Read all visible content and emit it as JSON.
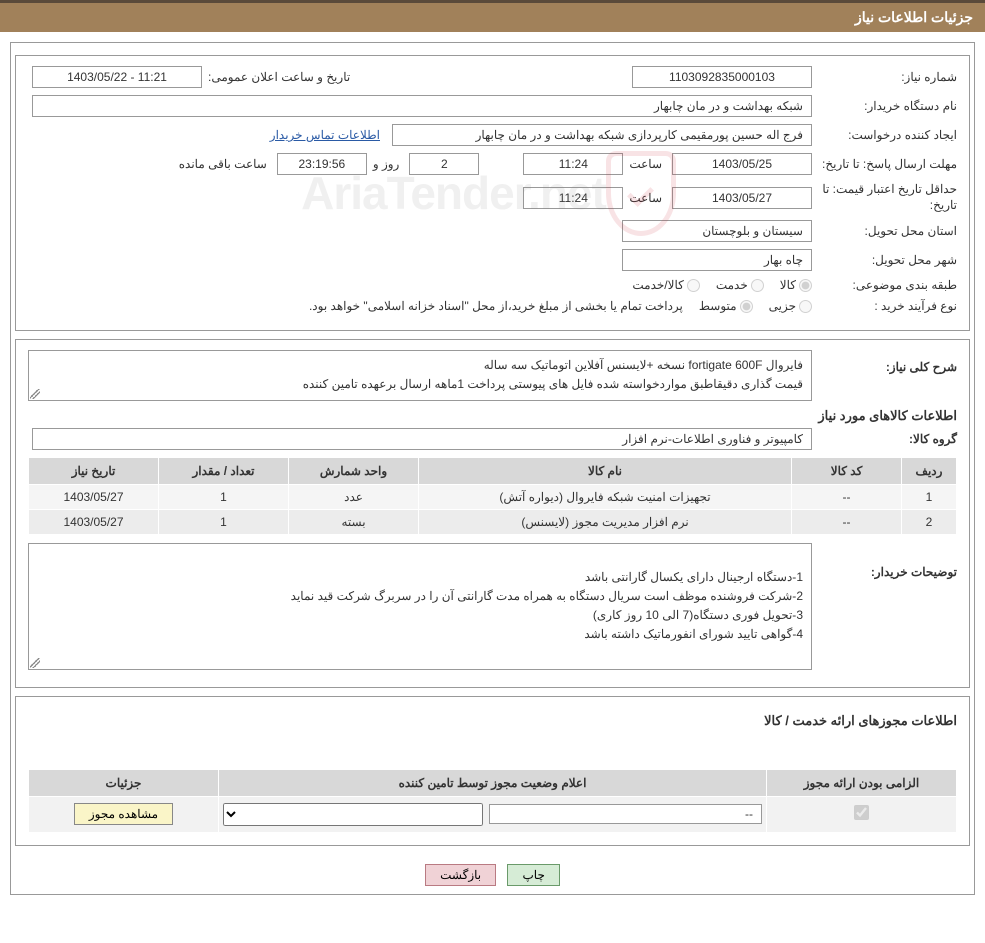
{
  "title_bar": "جزئیات اطلاعات نیاز",
  "details": {
    "need_number_label": "شماره نیاز:",
    "need_number": "1103092835000103",
    "announce_label": "تاریخ و ساعت اعلان عمومی:",
    "announce_value": "11:21 - 1403/05/22",
    "buyer_org_label": "نام دستگاه خریدار:",
    "buyer_org": "شبکه بهداشت و در مان چابهار",
    "requester_label": "ایجاد کننده درخواست:",
    "requester": "فرج اله حسین پورمقیمی کارپردازی شبکه بهداشت و در مان چابهار",
    "contact_link": "اطلاعات تماس خریدار",
    "deadline_label": "مهلت ارسال پاسخ: تا تاریخ:",
    "deadline_date": "1403/05/25",
    "time_label": "ساعت",
    "deadline_time": "11:24",
    "days_value": "2",
    "days_and": "روز و",
    "countdown": "23:19:56",
    "remaining_label": "ساعت باقی مانده",
    "validity_label": "حداقل تاریخ اعتبار قیمت: تا تاریخ:",
    "validity_date": "1403/05/27",
    "validity_time": "11:24",
    "province_label": "استان محل تحویل:",
    "province": "سیستان و بلوچستان",
    "city_label": "شهر محل تحویل:",
    "city": "چاه بهار",
    "category_label": "طبقه بندی موضوعی:",
    "cat_opt1": "کالا",
    "cat_opt2": "خدمت",
    "cat_opt3": "کالا/خدمت",
    "purchase_type_label": "نوع فرآیند خرید :",
    "ptype_opt1": "جزیی",
    "ptype_opt2": "متوسط",
    "purchase_desc": "پرداخت تمام یا بخشی از مبلغ خرید،از محل \"اسناد خزانه اسلامی\" خواهد بود."
  },
  "general": {
    "label": "شرح کلی نیاز:",
    "line1": "فایروال fortigate 600F نسخه +لایسنس آفلاین اتوماتیک سه ساله",
    "line2": "قیمت گذاری دقیقاطبق مواردخواسته شده فایل های پیوستی پرداخت 1ماهه ارسال برعهده تامین کننده"
  },
  "items_section": {
    "title": "اطلاعات کالاهای مورد نیاز",
    "group_label": "گروه کالا:",
    "group_value": "کامپیوتر و فناوری اطلاعات-نرم افزار",
    "cols": {
      "row": "ردیف",
      "code": "کد کالا",
      "name": "نام کالا",
      "unit": "واحد شمارش",
      "qty": "تعداد / مقدار",
      "date": "تاریخ نیاز"
    },
    "rows": [
      {
        "n": "1",
        "code": "--",
        "name": "تجهیزات امنیت شبکه فایروال (دیواره آتش)",
        "unit": "عدد",
        "qty": "1",
        "date": "1403/05/27"
      },
      {
        "n": "2",
        "code": "--",
        "name": "نرم افزار مدیریت مجوز (لایسنس)",
        "unit": "بسته",
        "qty": "1",
        "date": "1403/05/27"
      }
    ],
    "notes_label": "توضیحات خریدار:",
    "notes": "1-دستگاه ارجینال دارای یکسال گارانتی باشد\n2-شرکت فروشنده موظف است سریال دستگاه به همراه مدت گارانتی آن را در سربرگ شرکت قید نماید\n3-تحویل فوری دستگاه(7 الی 10 روز کاری)\n4-گواهی تایید شورای انفورماتیک داشته باشد"
  },
  "license": {
    "header": "اطلاعات مجوزهای ارائه خدمت / کالا",
    "col_required": "الزامی بودن ارائه مجوز",
    "col_status": "اعلام وضعیت مجوز توسط تامین کننده",
    "col_details": "جزئیات",
    "status_placeholder": "--",
    "view_btn": "مشاهده مجوز"
  },
  "buttons": {
    "print": "چاپ",
    "back": "بازگشت"
  },
  "watermark_text": "AriaTender.net",
  "colors": {
    "title_bg": "#a1815a",
    "border": "#999999",
    "th_bg": "#d8d8d8",
    "link": "#2a5aa5",
    "btn_view_bg": "#faf5c8",
    "btn_print_bg": "#d6ecd6",
    "btn_back_bg": "#f0d2d6"
  }
}
